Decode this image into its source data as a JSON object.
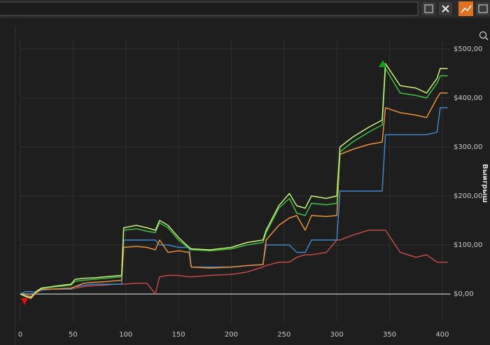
{
  "chart_data": {
    "type": "line",
    "y_axis_label": "Выигрыш",
    "x": [
      0,
      5,
      10,
      15,
      20,
      30,
      40,
      48,
      52,
      60,
      70,
      80,
      90,
      96,
      98,
      110,
      120,
      128,
      132,
      140,
      150,
      160,
      162,
      180,
      200,
      215,
      230,
      233,
      245,
      255,
      262,
      270,
      276,
      290,
      300,
      303,
      315,
      330,
      343,
      346,
      360,
      375,
      385,
      395,
      398,
      405
    ],
    "series": [
      {
        "color": "#c8f07a",
        "values": [
          0,
          -5,
          -8,
          5,
          12,
          15,
          18,
          20,
          30,
          32,
          33,
          35,
          37,
          38,
          135,
          140,
          135,
          130,
          150,
          140,
          115,
          95,
          92,
          90,
          95,
          105,
          110,
          130,
          180,
          205,
          180,
          175,
          200,
          195,
          200,
          300,
          320,
          340,
          355,
          470,
          425,
          420,
          410,
          440,
          460,
          460
        ]
      },
      {
        "color": "#3fbf3f",
        "values": [
          0,
          -5,
          -8,
          5,
          12,
          14,
          16,
          18,
          26,
          28,
          30,
          32,
          34,
          35,
          130,
          133,
          128,
          125,
          145,
          135,
          110,
          93,
          90,
          88,
          92,
          100,
          105,
          125,
          175,
          195,
          165,
          160,
          185,
          182,
          185,
          290,
          310,
          330,
          345,
          460,
          410,
          405,
          400,
          430,
          445,
          445
        ]
      },
      {
        "color": "#e8903a",
        "values": [
          0,
          -3,
          -5,
          3,
          10,
          10,
          11,
          12,
          15,
          22,
          24,
          25,
          27,
          28,
          95,
          97,
          95,
          90,
          110,
          85,
          88,
          85,
          55,
          53,
          55,
          58,
          60,
          110,
          140,
          155,
          160,
          130,
          160,
          158,
          160,
          285,
          295,
          305,
          310,
          380,
          370,
          365,
          360,
          400,
          410,
          410
        ]
      },
      {
        "color": "#3f86c8",
        "values": [
          0,
          5,
          5,
          3,
          8,
          10,
          10,
          10,
          15,
          18,
          20,
          20,
          20,
          20,
          110,
          110,
          110,
          110,
          100,
          100,
          95,
          95,
          55,
          55,
          55,
          58,
          60,
          100,
          100,
          100,
          85,
          85,
          110,
          110,
          110,
          210,
          210,
          210,
          210,
          325,
          325,
          325,
          325,
          330,
          380,
          380
        ]
      },
      {
        "color": "#c04848",
        "values": [
          0,
          -5,
          -10,
          2,
          8,
          10,
          10,
          10,
          12,
          15,
          17,
          18,
          20,
          20,
          20,
          22,
          22,
          0,
          35,
          38,
          38,
          35,
          35,
          38,
          40,
          45,
          55,
          58,
          65,
          65,
          75,
          80,
          80,
          85,
          110,
          110,
          120,
          130,
          130,
          130,
          85,
          75,
          80,
          65,
          65,
          65
        ]
      }
    ],
    "xlim": [
      0,
      405
    ],
    "ylim": [
      -57,
      517
    ],
    "xticks": [
      0,
      50,
      100,
      150,
      200,
      250,
      300,
      350,
      400
    ],
    "yticks": [
      {
        "value": 0,
        "label": "$0,00"
      },
      {
        "value": 100,
        "label": "$100,00"
      },
      {
        "value": 200,
        "label": "$200,00"
      },
      {
        "value": 300,
        "label": "$300,00"
      },
      {
        "value": 400,
        "label": "$400,00"
      },
      {
        "value": 500,
        "label": "$500,00"
      }
    ],
    "grid": true
  }
}
